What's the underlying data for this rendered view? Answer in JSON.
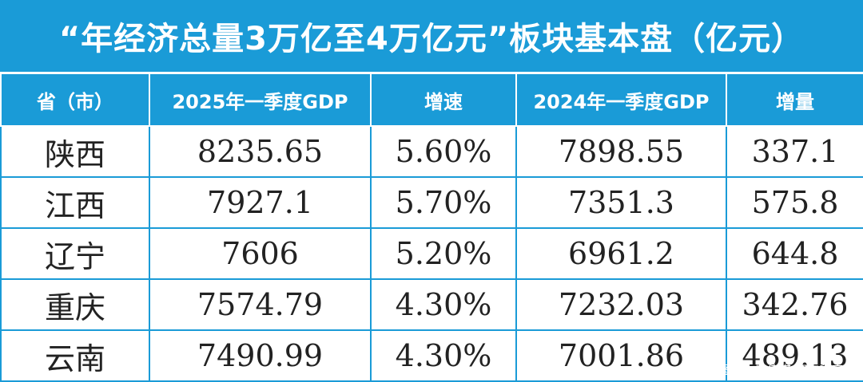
{
  "chart_data": {
    "type": "table",
    "title": "“年经济总量3万亿至4万亿元”板块基本盘（亿元）",
    "columns": [
      "省（市）",
      "2025年一季度GDP",
      "增速",
      "2024年一季度GDP",
      "增量"
    ],
    "rows": [
      [
        "陕西",
        "8235.65",
        "5.60%",
        "7898.55",
        "337.1"
      ],
      [
        "江西",
        "7927.1",
        "5.70%",
        "7351.3",
        "575.8"
      ],
      [
        "辽宁",
        "7606",
        "5.20%",
        "6961.2",
        "644.8"
      ],
      [
        "重庆",
        "7574.79",
        "4.30%",
        "7232.03",
        "342.76"
      ],
      [
        "云南",
        "7490.99",
        "4.30%",
        "7001.86",
        "489.13"
      ]
    ],
    "footer": "制图：火天传媒/拥抱印度洋"
  },
  "colors": {
    "background": "#1a9bd7",
    "header_text": "#ffffff",
    "cell_background": "#ffffff",
    "cell_text": "#222222"
  }
}
